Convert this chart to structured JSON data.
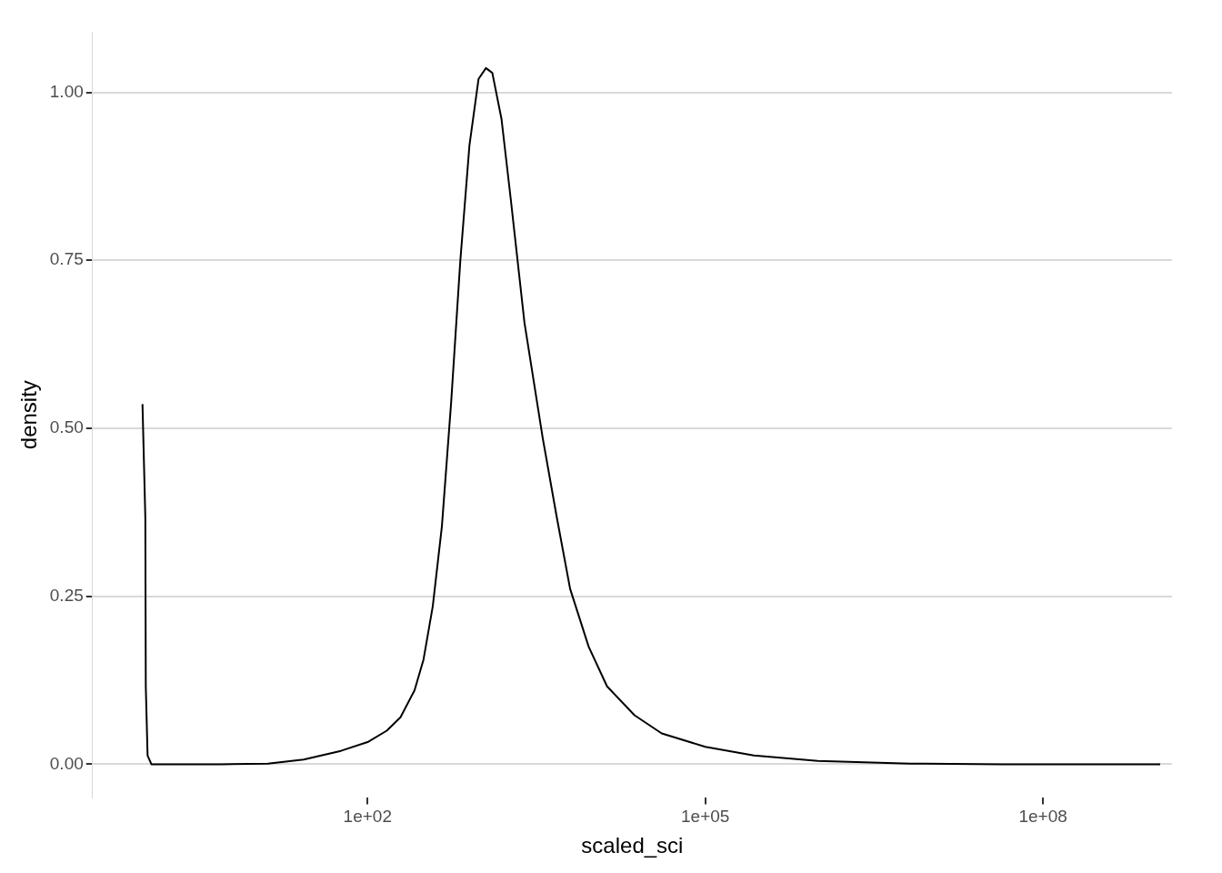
{
  "chart_data": {
    "type": "line",
    "xlabel": "scaled_sci",
    "ylabel": "density",
    "log": "x",
    "grid": "y",
    "legend": false,
    "marker": "none",
    "line_style": "solid",
    "xlim": [
      0.36,
      1400000000.0
    ],
    "xticks": [
      {
        "value": 100,
        "label": "1e+02"
      },
      {
        "value": 100000,
        "label": "1e+05"
      },
      {
        "value": 100000000,
        "label": "1e+08"
      }
    ],
    "ylim": [
      -0.05,
      1.09
    ],
    "yticks": [
      {
        "value": 0,
        "label": "0.00"
      },
      {
        "value": 0.25,
        "label": "0.25"
      },
      {
        "value": 0.5,
        "label": "0.50"
      },
      {
        "value": 0.75,
        "label": "0.75"
      },
      {
        "value": 1,
        "label": "1.00"
      }
    ],
    "series": [
      {
        "color": "#000000",
        "x": [
          1,
          1.06,
          1.07,
          1.11,
          1.2,
          5,
          13,
          27,
          58,
          100,
          148,
          196,
          261,
          314,
          379,
          457,
          552,
          666,
          803,
          968,
          1125,
          1282,
          1548,
          1867,
          2475,
          3600,
          4800,
          6300,
          9200,
          13400,
          23500,
          41000,
          100000,
          270000,
          1000000,
          6600000,
          43000000,
          1100000000
        ],
        "values": [
          0.536,
          0.367,
          0.116,
          0.013,
          0,
          0,
          0.001,
          0.007,
          0.02,
          0.033,
          0.05,
          0.07,
          0.11,
          0.156,
          0.235,
          0.354,
          0.538,
          0.749,
          0.921,
          1.02,
          1.036,
          1.029,
          0.96,
          0.842,
          0.657,
          0.485,
          0.367,
          0.261,
          0.175,
          0.116,
          0.073,
          0.046,
          0.026,
          0.013,
          0.005,
          0.001,
          0,
          0
        ]
      }
    ]
  }
}
